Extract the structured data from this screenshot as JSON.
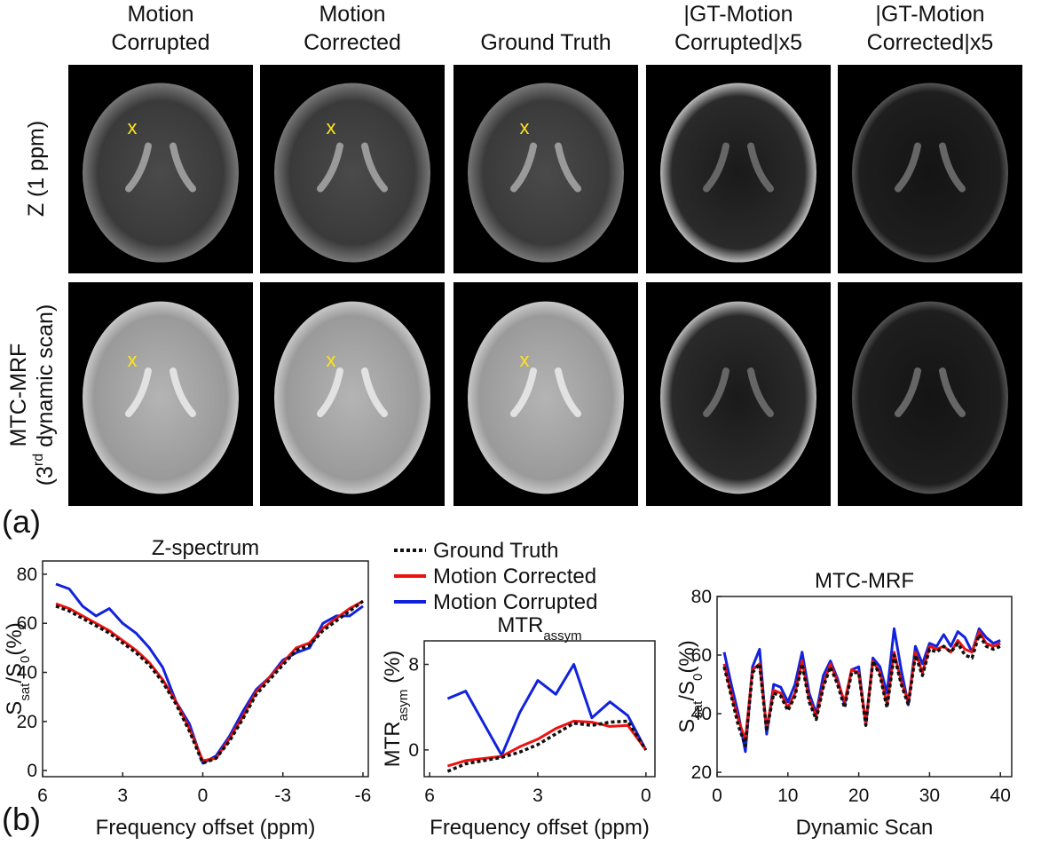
{
  "panel_labels": [
    "(a)",
    "(b)"
  ],
  "image_grid": {
    "columns": [
      [
        "Motion",
        "Corrupted"
      ],
      [
        "Motion",
        "Corrected"
      ],
      [
        "Ground Truth"
      ],
      [
        "|GT-Motion",
        "Corrupted|x5"
      ],
      [
        "|GT-Motion",
        "Corrected|x5"
      ]
    ],
    "rows": [
      {
        "lines": [
          [
            "Z (1 ppm)"
          ]
        ]
      },
      {
        "lines": [
          [
            "MTC-MRF"
          ],
          [
            "(3",
            "rd",
            " dynamic scan)"
          ]
        ]
      }
    ],
    "marker": "x"
  },
  "legend": [
    {
      "name": "Ground Truth",
      "color": "#111111",
      "dashed": true
    },
    {
      "name": "Motion Corrected",
      "color": "#ee1111",
      "dashed": false
    },
    {
      "name": "Motion Corrupted",
      "color": "#1122dd",
      "dashed": false
    }
  ],
  "chart_data": [
    {
      "type": "line",
      "title": [
        [
          "Z-spectrum"
        ]
      ],
      "xlabel": "Frequency offset (ppm)",
      "ylabel": [
        [
          "S"
        ],
        [
          "sat"
        ],
        [
          "/S"
        ],
        [
          "0"
        ],
        [
          "(%)"
        ]
      ],
      "x": [
        5.5,
        5,
        4.5,
        4,
        3.5,
        3,
        2.5,
        2,
        1.5,
        1,
        0.5,
        0,
        -0.5,
        -1,
        -1.5,
        -2,
        -2.5,
        -3,
        -3.5,
        -4,
        -4.5,
        -5,
        -5.5,
        -6
      ],
      "xlim": [
        6,
        -6.2
      ],
      "xticks": [
        6,
        3,
        0,
        -3,
        -6
      ],
      "ylim": [
        -2.5,
        85.4
      ],
      "yticks": [
        0,
        20,
        40,
        60,
        80
      ],
      "series": [
        {
          "values": [
            67,
            65,
            62,
            59,
            56,
            52,
            48,
            43,
            36,
            27,
            16,
            3,
            5,
            12,
            21,
            31,
            37,
            43,
            49,
            51,
            57,
            61,
            65,
            69
          ]
        },
        {
          "values": [
            68,
            66,
            63,
            60,
            57,
            53,
            49,
            44,
            37,
            28,
            17,
            4,
            5,
            13,
            22,
            32,
            38,
            44,
            50,
            52,
            58,
            62,
            66,
            69
          ]
        },
        {
          "values": [
            76,
            74,
            67,
            63,
            66,
            60,
            56,
            50,
            42,
            28,
            19,
            3,
            6,
            14,
            24,
            33,
            38,
            45,
            48,
            50,
            60,
            63,
            63,
            67
          ]
        }
      ]
    },
    {
      "type": "line",
      "title": [
        [
          "MTR"
        ],
        [
          "assym"
        ]
      ],
      "xlabel": "Frequency offset (ppm)",
      "ylabel": [
        [
          "MTR"
        ],
        [
          "asym"
        ],
        [
          " (%)"
        ]
      ],
      "x": [
        5.5,
        5,
        4.5,
        4,
        3.5,
        3,
        2.5,
        2,
        1.5,
        1,
        0.5,
        0
      ],
      "xlim": [
        6.15,
        -0.25
      ],
      "xticks": [
        6,
        3,
        0
      ],
      "ylim": [
        -2.5,
        10.2
      ],
      "yticks": [
        0,
        8
      ],
      "series": [
        {
          "values": [
            -2,
            -1.3,
            -1,
            -0.7,
            -0.2,
            0.5,
            1.5,
            2.5,
            2.3,
            2.6,
            2.7,
            0
          ]
        },
        {
          "values": [
            -1.5,
            -1,
            -0.8,
            -0.6,
            0.3,
            1,
            2,
            2.7,
            2.6,
            2.2,
            2.3,
            0
          ]
        },
        {
          "values": [
            4.8,
            5.5,
            2.5,
            -0.5,
            3.5,
            6.5,
            5.2,
            8,
            3,
            4.5,
            3.2,
            0
          ]
        }
      ]
    },
    {
      "type": "line",
      "title": [
        [
          "MTC-MRF"
        ]
      ],
      "xlabel": "Dynamic Scan",
      "ylabel": [
        [
          "S"
        ],
        [
          "sat"
        ],
        [
          "/S"
        ],
        [
          "0"
        ],
        [
          "(%)"
        ]
      ],
      "x": [
        1,
        2,
        3,
        4,
        5,
        6,
        7,
        8,
        9,
        10,
        11,
        12,
        13,
        14,
        15,
        16,
        17,
        18,
        19,
        20,
        21,
        22,
        23,
        24,
        25,
        26,
        27,
        28,
        29,
        30,
        31,
        32,
        33,
        34,
        35,
        36,
        37,
        38,
        39,
        40
      ],
      "xlim": [
        0,
        41.6
      ],
      "xticks": [
        0,
        10,
        20,
        30,
        40
      ],
      "ylim": [
        18.5,
        80
      ],
      "yticks": [
        20,
        40,
        60,
        80
      ],
      "series": [
        {
          "values": [
            56,
            46,
            36,
            29,
            54,
            57,
            34,
            47,
            46,
            41,
            46,
            57,
            44,
            38,
            49,
            56,
            50,
            42,
            54,
            54,
            36,
            58,
            53,
            42,
            60,
            50,
            43,
            60,
            53,
            62,
            61,
            63,
            61,
            64,
            60,
            59,
            67,
            63,
            62,
            63
          ]
        },
        {
          "values": [
            57,
            47,
            38,
            31,
            55,
            57,
            35,
            48,
            47,
            42,
            47,
            58,
            45,
            39,
            50,
            57,
            51,
            44,
            55,
            54,
            37,
            58,
            54,
            43,
            61,
            51,
            44,
            61,
            54,
            63,
            62,
            63,
            61,
            65,
            62,
            61,
            68,
            64,
            63,
            64
          ]
        },
        {
          "values": [
            61,
            50,
            40,
            27,
            56,
            62,
            33,
            50,
            49,
            44,
            50,
            61,
            47,
            40,
            53,
            58,
            52,
            43,
            55,
            56,
            36,
            59,
            56,
            47,
            69,
            55,
            43,
            63,
            57,
            64,
            63,
            67,
            63,
            68,
            66,
            61,
            69,
            66,
            64,
            65
          ]
        }
      ]
    }
  ]
}
